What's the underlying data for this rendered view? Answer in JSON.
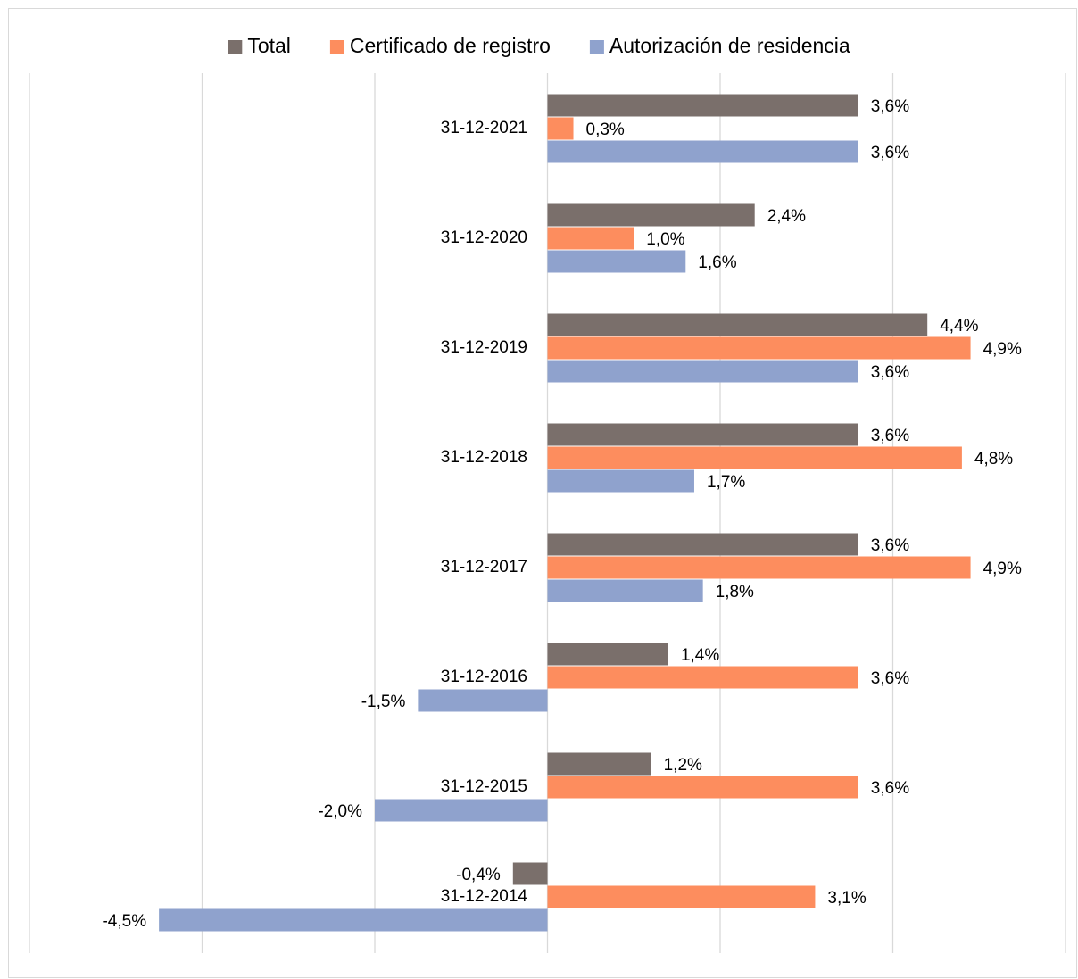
{
  "chart_data": {
    "type": "bar",
    "orientation": "horizontal",
    "categories": [
      "31-12-2021",
      "31-12-2020",
      "31-12-2019",
      "31-12-2018",
      "31-12-2017",
      "31-12-2016",
      "31-12-2015",
      "31-12-2014"
    ],
    "series": [
      {
        "name": "Total",
        "color": "#7a6f6b",
        "values": [
          3.6,
          2.4,
          4.4,
          3.6,
          3.6,
          1.4,
          1.2,
          -0.4
        ],
        "value_labels": [
          "3,6%",
          "2,4%",
          "4,4%",
          "3,6%",
          "3,6%",
          "1,4%",
          "1,2%",
          "-0,4%"
        ]
      },
      {
        "name": "Certificado de registro",
        "color": "#fd8d5e",
        "values": [
          0.3,
          1.0,
          4.9,
          4.8,
          4.9,
          3.6,
          3.6,
          3.1
        ],
        "value_labels": [
          "0,3%",
          "1,0%",
          "4,9%",
          "4,8%",
          "4,9%",
          "3,6%",
          "3,6%",
          "3,1%"
        ]
      },
      {
        "name": "Autorización de residencia",
        "color": "#8fa2cd",
        "values": [
          3.6,
          1.6,
          3.6,
          1.7,
          1.8,
          -1.5,
          -2.0,
          -4.5
        ],
        "value_labels": [
          "3,6%",
          "1,6%",
          "3,6%",
          "1,7%",
          "1,8%",
          "-1,5%",
          "-2,0%",
          "-4,5%"
        ]
      }
    ],
    "xlim": [
      -6,
      6
    ],
    "xticks": [
      -6,
      -4,
      -2,
      0,
      2,
      4,
      6
    ],
    "grid": true,
    "legend": "top"
  }
}
